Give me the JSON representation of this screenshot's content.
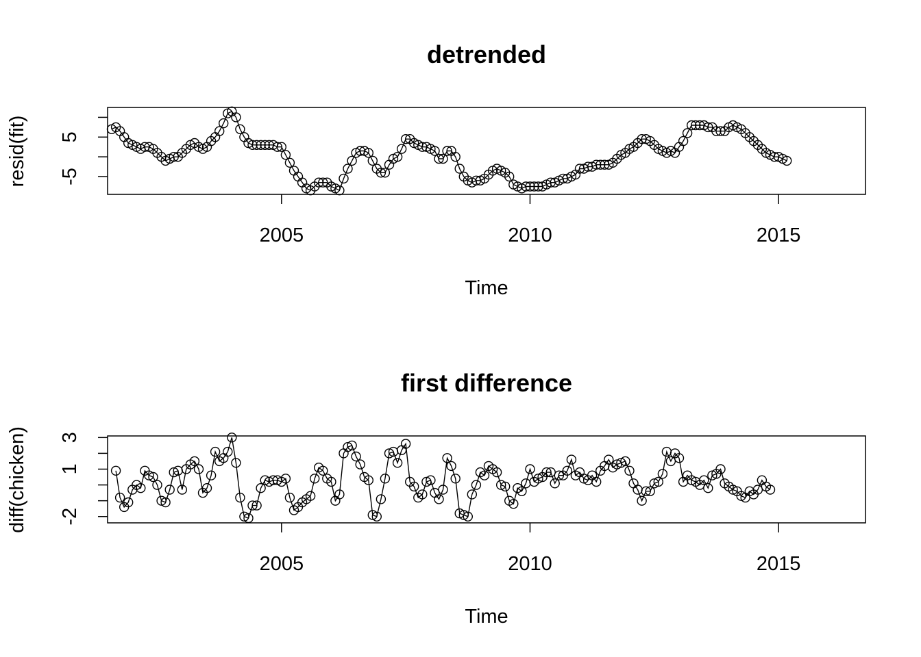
{
  "chart_data": [
    {
      "type": "line",
      "title": "detrended",
      "xlabel": "Time",
      "ylabel": "resid(fit)",
      "xlim": [
        2001.5,
        2016.75
      ],
      "ylim": [
        -9.5,
        12.5
      ],
      "xticks": [
        2005,
        2010,
        2015
      ],
      "yticks": [
        -5,
        0,
        5,
        10
      ],
      "ytick_labels": [
        "-5",
        "",
        "5",
        ""
      ],
      "grid": false,
      "markers": "open-circle",
      "x_start": 2001.583333,
      "step": 0.083333,
      "values": [
        7.0,
        7.5,
        6.5,
        5.0,
        3.5,
        3.0,
        2.5,
        2.0,
        2.5,
        2.5,
        2.0,
        1.0,
        0.0,
        -1.0,
        -0.5,
        0.0,
        0.0,
        1.0,
        2.0,
        3.0,
        3.5,
        2.5,
        2.0,
        2.5,
        4.0,
        5.0,
        6.5,
        8.5,
        11.0,
        11.5,
        10.0,
        7.0,
        5.0,
        3.5,
        3.0,
        3.0,
        3.0,
        3.0,
        3.0,
        3.0,
        2.5,
        2.5,
        0.5,
        -1.5,
        -3.5,
        -5.0,
        -6.5,
        -8.0,
        -8.5,
        -7.5,
        -6.5,
        -6.5,
        -6.5,
        -7.5,
        -8.0,
        -8.5,
        -5.5,
        -3.0,
        -1.0,
        1.0,
        1.5,
        1.5,
        1.0,
        -1.0,
        -3.0,
        -4.0,
        -4.0,
        -2.0,
        -0.5,
        0.0,
        2.0,
        4.5,
        4.5,
        3.5,
        3.0,
        2.5,
        2.5,
        2.0,
        1.5,
        -0.5,
        -0.5,
        1.5,
        1.5,
        0.0,
        -3.0,
        -5.0,
        -6.0,
        -6.5,
        -6.0,
        -6.0,
        -5.5,
        -4.5,
        -3.5,
        -3.0,
        -3.5,
        -4.0,
        -5.0,
        -7.0,
        -7.5,
        -8.0,
        -7.5,
        -7.5,
        -7.5,
        -7.5,
        -7.5,
        -7.0,
        -6.5,
        -6.5,
        -6.0,
        -5.5,
        -5.5,
        -5.0,
        -4.5,
        -3.0,
        -3.0,
        -2.5,
        -2.5,
        -2.0,
        -2.0,
        -2.0,
        -2.0,
        -1.5,
        -0.5,
        0.5,
        1.0,
        2.0,
        2.5,
        3.5,
        4.5,
        4.5,
        4.0,
        3.0,
        2.0,
        1.5,
        1.0,
        1.5,
        1.0,
        2.5,
        4.0,
        6.0,
        8.0,
        8.0,
        8.0,
        8.0,
        7.5,
        7.5,
        6.5,
        6.5,
        6.5,
        7.5,
        8.0,
        7.5,
        7.0,
        6.0,
        5.0,
        4.0,
        3.0,
        2.0,
        1.0,
        0.5,
        0.0,
        0.0,
        -0.5,
        -1.0
      ]
    },
    {
      "type": "line",
      "title": "first difference",
      "xlabel": "Time",
      "ylabel": "diff(chicken)",
      "xlim": [
        2001.5,
        2016.75
      ],
      "ylim": [
        -2.4,
        3.1
      ],
      "xticks": [
        2005,
        2010,
        2015
      ],
      "yticks": [
        -2,
        -1,
        0,
        1,
        2,
        3
      ],
      "ytick_labels": [
        "-2",
        "",
        "",
        "1",
        "",
        "3"
      ],
      "grid": false,
      "markers": "open-circle",
      "x_start": 2001.666667,
      "step": 0.083333,
      "values": [
        0.9,
        -0.8,
        -1.4,
        -1.1,
        -0.3,
        0.0,
        -0.2,
        0.9,
        0.6,
        0.5,
        0.0,
        -1.0,
        -1.1,
        -0.3,
        0.8,
        0.9,
        -0.3,
        1.0,
        1.3,
        1.5,
        1.0,
        -0.5,
        -0.2,
        0.6,
        2.1,
        1.5,
        1.7,
        2.1,
        3.0,
        1.4,
        -0.8,
        -2.0,
        -2.1,
        -1.3,
        -1.3,
        -0.2,
        0.3,
        0.2,
        0.3,
        0.3,
        0.2,
        0.4,
        -0.8,
        -1.6,
        -1.4,
        -1.1,
        -0.9,
        -0.7,
        0.4,
        1.1,
        0.9,
        0.4,
        0.2,
        -1.0,
        -0.6,
        2.0,
        2.4,
        2.5,
        1.8,
        1.3,
        0.5,
        0.3,
        -1.9,
        -2.0,
        -0.9,
        0.4,
        2.0,
        2.1,
        1.4,
        2.2,
        2.6,
        0.2,
        -0.1,
        -0.8,
        -0.6,
        0.2,
        0.3,
        -0.5,
        -0.9,
        -0.3,
        1.7,
        1.2,
        0.4,
        -1.8,
        -1.9,
        -2.0,
        -0.6,
        0.0,
        0.8,
        0.6,
        1.2,
        1.0,
        0.8,
        0.0,
        -0.1,
        -1.0,
        -1.2,
        -0.2,
        -0.4,
        0.1,
        1.0,
        0.2,
        0.4,
        0.5,
        0.8,
        0.8,
        0.1,
        0.6,
        0.6,
        0.9,
        1.6,
        0.6,
        0.8,
        0.4,
        0.3,
        0.6,
        0.2,
        0.9,
        1.2,
        1.6,
        1.1,
        1.3,
        1.4,
        1.5,
        0.9,
        0.1,
        -0.3,
        -1.0,
        -0.4,
        -0.4,
        0.1,
        0.2,
        0.7,
        2.1,
        1.5,
        2.0,
        1.7,
        0.2,
        0.6,
        0.3,
        0.2,
        0.0,
        0.3,
        -0.2,
        0.6,
        0.7,
        1.0,
        0.1,
        -0.1,
        -0.3,
        -0.4,
        -0.7,
        -0.8,
        -0.4,
        -0.6,
        -0.3,
        0.3,
        -0.1,
        -0.3
      ]
    }
  ]
}
